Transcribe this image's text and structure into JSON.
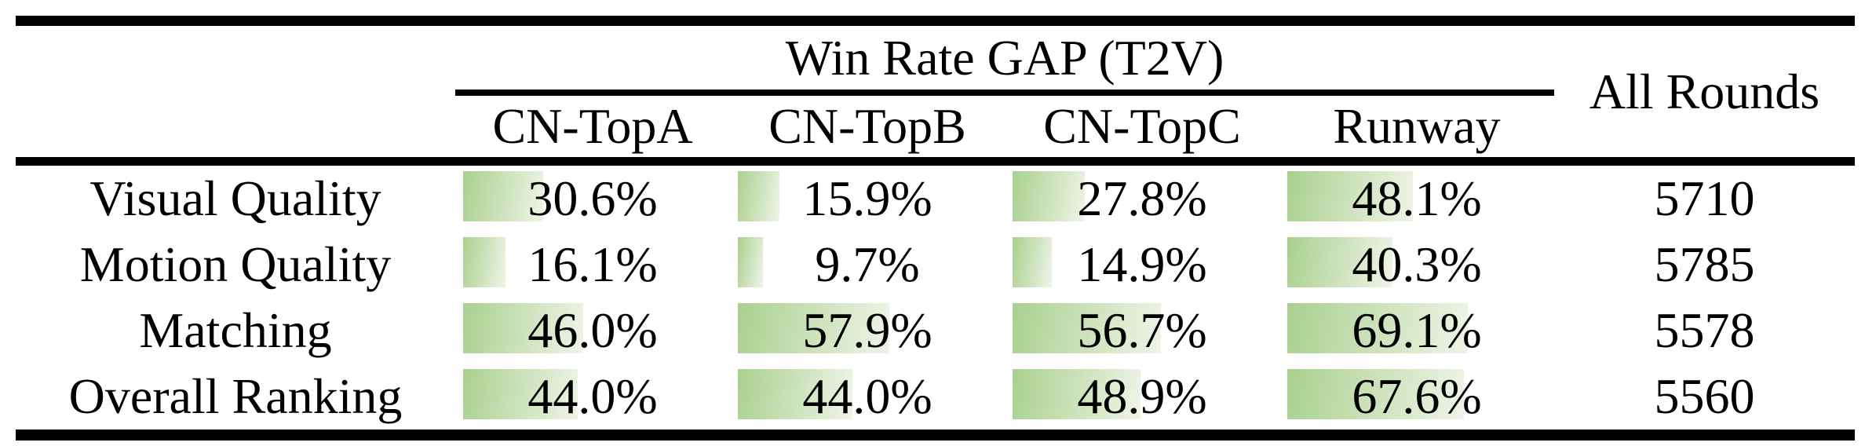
{
  "table": {
    "group_header": "Win Rate GAP (T2V)",
    "all_rounds_header": "All Rounds",
    "model_columns": [
      "CN-TopA",
      "CN-TopB",
      "CN-TopC",
      "Runway"
    ],
    "rows": [
      {
        "label": "Visual Quality",
        "values": [
          "30.6%",
          "15.9%",
          "27.8%",
          "48.1%"
        ],
        "all_rounds": "5710"
      },
      {
        "label": "Motion Quality",
        "values": [
          "16.1%",
          "9.7%",
          "14.9%",
          "40.3%"
        ],
        "all_rounds": "5785"
      },
      {
        "label": "Matching",
        "values": [
          "46.0%",
          "57.9%",
          "56.7%",
          "69.1%"
        ],
        "all_rounds": "5578"
      },
      {
        "label": "Overall Ranking",
        "values": [
          "44.0%",
          "44.0%",
          "48.9%",
          "67.6%"
        ],
        "all_rounds": "5560"
      }
    ],
    "colors": {
      "bar_green": "#a9d08e",
      "bar_fade": "#f0f4e8",
      "rule_black": "#000000"
    }
  },
  "chart_data": {
    "type": "table",
    "title": "Win Rate GAP (T2V)",
    "categories": [
      "Visual Quality",
      "Motion Quality",
      "Matching",
      "Overall Ranking"
    ],
    "series": [
      {
        "name": "CN-TopA",
        "values": [
          30.6,
          16.1,
          46.0,
          44.0
        ]
      },
      {
        "name": "CN-TopB",
        "values": [
          15.9,
          9.7,
          57.9,
          44.0
        ]
      },
      {
        "name": "CN-TopC",
        "values": [
          27.8,
          14.9,
          56.7,
          48.9
        ]
      },
      {
        "name": "Runway",
        "values": [
          48.1,
          40.3,
          69.1,
          67.6
        ]
      }
    ],
    "all_rounds": [
      5710,
      5785,
      5578,
      5560
    ],
    "unit": "%",
    "layout_hints": {
      "bars": "left-aligned green gradient data bars behind values",
      "grid": "booktabs rules only"
    }
  }
}
